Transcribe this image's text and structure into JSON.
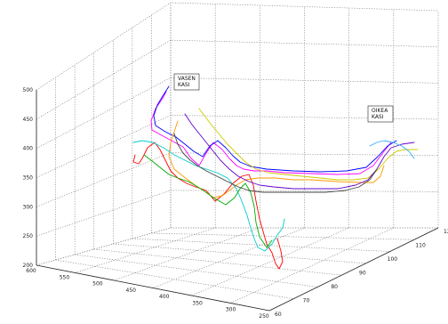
{
  "chart_data": {
    "type": "line3d",
    "title": "",
    "xlabel": "",
    "ylabel": "",
    "zlabel": "",
    "grid": true,
    "zlim": [
      200,
      500
    ],
    "zticks": [
      "200",
      "250",
      "300",
      "350",
      "400",
      "450",
      "500"
    ],
    "left_axis_ticks": [
      "250",
      "300",
      "350",
      "400",
      "450",
      "500",
      "550",
      "600"
    ],
    "right_axis_ticks": [
      "60",
      "70",
      "80",
      "90",
      "100",
      "110",
      "120"
    ],
    "annotations": [
      {
        "id": "vasen",
        "lines": [
          "VASEN",
          "KASI"
        ]
      },
      {
        "id": "oikea",
        "lines": [
          "OIKEA",
          "KASI"
        ]
      }
    ],
    "series": [
      {
        "color": "#ff00ff",
        "values": [
          [
            187,
            103
          ],
          [
            182,
            112
          ],
          [
            175,
            122
          ],
          [
            170,
            136
          ],
          [
            171,
            146
          ],
          [
            180,
            151
          ],
          [
            193,
            158
          ],
          [
            206,
            165
          ],
          [
            215,
            178
          ],
          [
            224,
            186
          ],
          [
            232,
            172
          ],
          [
            240,
            160
          ],
          [
            250,
            168
          ],
          [
            258,
            178
          ],
          [
            266,
            186
          ],
          [
            274,
            190
          ],
          [
            286,
            192
          ],
          [
            300,
            192
          ],
          [
            320,
            194
          ],
          [
            350,
            195
          ],
          [
            380,
            196
          ],
          [
            405,
            195
          ],
          [
            420,
            186
          ],
          [
            432,
            170
          ],
          [
            440,
            160
          ]
        ]
      },
      {
        "color": "#0000ff",
        "values": [
          [
            190,
            97
          ],
          [
            183,
            108
          ],
          [
            177,
            118
          ],
          [
            173,
            130
          ],
          [
            175,
            141
          ],
          [
            186,
            148
          ],
          [
            198,
            154
          ],
          [
            208,
            162
          ],
          [
            218,
            170
          ],
          [
            228,
            176
          ],
          [
            236,
            164
          ],
          [
            245,
            158
          ],
          [
            254,
            166
          ],
          [
            262,
            175
          ],
          [
            270,
            182
          ],
          [
            282,
            187
          ],
          [
            300,
            190
          ],
          [
            330,
            192
          ],
          [
            360,
            193
          ],
          [
            390,
            192
          ],
          [
            412,
            188
          ],
          [
            425,
            176
          ],
          [
            436,
            164
          ],
          [
            446,
            158
          ]
        ]
      },
      {
        "color": "#ff0000",
        "values": [
          [
            152,
            174
          ],
          [
            150,
            182
          ],
          [
            156,
            184
          ],
          [
            160,
            178
          ],
          [
            166,
            166
          ],
          [
            174,
            160
          ],
          [
            180,
            168
          ],
          [
            186,
            180
          ],
          [
            192,
            192
          ],
          [
            200,
            200
          ],
          [
            210,
            206
          ],
          [
            220,
            210
          ],
          [
            232,
            214
          ],
          [
            242,
            226
          ],
          [
            252,
            218
          ],
          [
            262,
            206
          ],
          [
            272,
            198
          ],
          [
            280,
            196
          ],
          [
            285,
            208
          ],
          [
            288,
            226
          ],
          [
            292,
            246
          ],
          [
            300,
            274
          ],
          [
            306,
            284
          ],
          [
            310,
            296
          ],
          [
            314,
            302
          ],
          [
            318,
            294
          ],
          [
            316,
            282
          ],
          [
            312,
            268
          ]
        ]
      },
      {
        "color": "#ff9900",
        "values": [
          [
            200,
            136
          ],
          [
            196,
            148
          ],
          [
            192,
            160
          ],
          [
            190,
            176
          ],
          [
            196,
            190
          ],
          [
            206,
            198
          ],
          [
            214,
            204
          ],
          [
            222,
            210
          ],
          [
            232,
            216
          ],
          [
            240,
            222
          ],
          [
            250,
            220
          ],
          [
            258,
            214
          ],
          [
            266,
            208
          ],
          [
            276,
            202
          ],
          [
            290,
            200
          ],
          [
            310,
            200
          ],
          [
            330,
            202
          ],
          [
            350,
            202
          ],
          [
            380,
            204
          ],
          [
            405,
            205
          ],
          [
            420,
            205
          ],
          [
            428,
            198
          ],
          [
            432,
            186
          ]
        ]
      },
      {
        "color": "#00cccc",
        "values": [
          [
            150,
            160
          ],
          [
            160,
            158
          ],
          [
            172,
            160
          ],
          [
            184,
            166
          ],
          [
            196,
            174
          ],
          [
            208,
            180
          ],
          [
            220,
            186
          ],
          [
            232,
            190
          ],
          [
            244,
            194
          ],
          [
            256,
            200
          ],
          [
            266,
            212
          ],
          [
            272,
            226
          ],
          [
            278,
            242
          ],
          [
            282,
            256
          ],
          [
            286,
            268
          ],
          [
            290,
            278
          ],
          [
            298,
            282
          ],
          [
            306,
            274
          ],
          [
            312,
            264
          ],
          [
            318,
            256
          ],
          [
            320,
            246
          ]
        ]
      },
      {
        "color": "#00aa00",
        "values": [
          [
            162,
            174
          ],
          [
            170,
            180
          ],
          [
            180,
            188
          ],
          [
            190,
            196
          ],
          [
            200,
            200
          ],
          [
            212,
            204
          ],
          [
            226,
            212
          ],
          [
            240,
            222
          ],
          [
            254,
            230
          ],
          [
            264,
            222
          ],
          [
            270,
            212
          ],
          [
            276,
            206
          ],
          [
            282,
            216
          ],
          [
            286,
            232
          ],
          [
            288,
            250
          ],
          [
            292,
            266
          ],
          [
            300,
            278
          ],
          [
            306,
            270
          ]
        ]
      },
      {
        "color": "#cccc00",
        "values": [
          [
            224,
            122
          ],
          [
            236,
            138
          ],
          [
            246,
            150
          ],
          [
            256,
            162
          ],
          [
            266,
            172
          ],
          [
            276,
            182
          ],
          [
            288,
            190
          ],
          [
            302,
            194
          ],
          [
            320,
            196
          ],
          [
            340,
            198
          ],
          [
            360,
            200
          ],
          [
            380,
            202
          ],
          [
            398,
            202
          ],
          [
            414,
            200
          ],
          [
            426,
            190
          ],
          [
            436,
            178
          ],
          [
            446,
            170
          ],
          [
            456,
            168
          ],
          [
            470,
            168
          ]
        ]
      },
      {
        "color": "#6600cc",
        "values": [
          [
            208,
            128
          ],
          [
            216,
            140
          ],
          [
            224,
            150
          ],
          [
            232,
            160
          ],
          [
            240,
            170
          ],
          [
            248,
            180
          ],
          [
            258,
            190
          ],
          [
            268,
            198
          ],
          [
            280,
            204
          ],
          [
            292,
            208
          ],
          [
            308,
            210
          ],
          [
            330,
            212
          ],
          [
            355,
            212
          ],
          [
            380,
            212
          ],
          [
            400,
            208
          ],
          [
            414,
            202
          ],
          [
            424,
            190
          ],
          [
            432,
            176
          ],
          [
            440,
            166
          ],
          [
            452,
            162
          ],
          [
            466,
            160
          ]
        ]
      },
      {
        "color": "#444444",
        "values": [
          [
            196,
            150
          ],
          [
            200,
            162
          ],
          [
            206,
            172
          ],
          [
            214,
            180
          ],
          [
            222,
            186
          ],
          [
            232,
            192
          ],
          [
            244,
            198
          ],
          [
            256,
            204
          ],
          [
            268,
            210
          ],
          [
            280,
            214
          ],
          [
            296,
            216
          ],
          [
            318,
            216
          ],
          [
            342,
            216
          ],
          [
            366,
            216
          ],
          [
            388,
            214
          ],
          [
            404,
            210
          ],
          [
            416,
            202
          ],
          [
            424,
            190
          ]
        ]
      },
      {
        "color": "#33aaff",
        "values": [
          [
            416,
            164
          ],
          [
            424,
            160
          ],
          [
            432,
            158
          ],
          [
            442,
            160
          ],
          [
            452,
            164
          ],
          [
            460,
            170
          ],
          [
            466,
            178
          ]
        ]
      }
    ]
  }
}
